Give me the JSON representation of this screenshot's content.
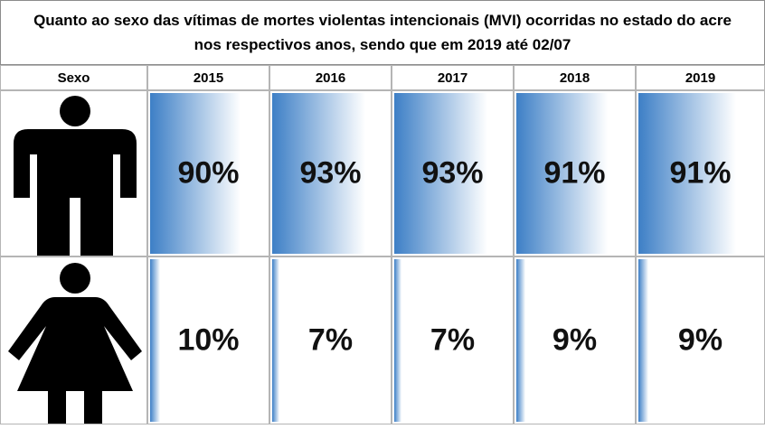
{
  "title": "Quanto ao sexo das vítimas de  mortes violentas intencionais (MVI) ocorridas no estado do acre nos respectivos anos, sendo que em 2019 até 02/07",
  "table": {
    "header": [
      "Sexo",
      "2015",
      "2016",
      "2017",
      "2018",
      "2019"
    ],
    "rows": [
      {
        "values": [
          90,
          93,
          93,
          91,
          91
        ],
        "value_labels": [
          "90%",
          "93%",
          "93%",
          "91%",
          "91%"
        ]
      },
      {
        "values": [
          10,
          7,
          7,
          9,
          9
        ],
        "value_labels": [
          "10%",
          "7%",
          "7%",
          "9%",
          "9%"
        ]
      }
    ]
  }
}
